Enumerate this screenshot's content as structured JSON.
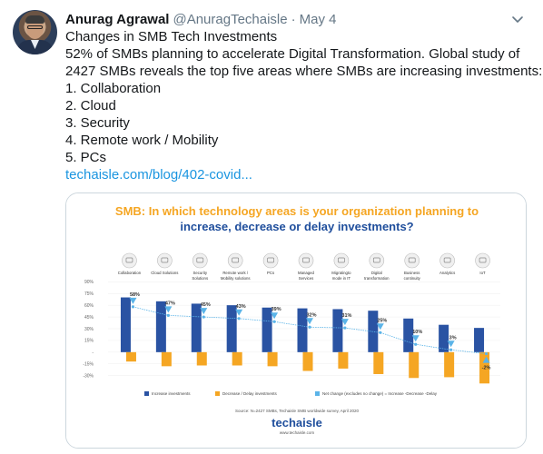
{
  "tweet": {
    "author_name": "Anurag Agrawal",
    "handle": "@AnuragTechaisle",
    "separator": "·",
    "date": "May 4",
    "lines": [
      "Changes in SMB Tech Investments",
      "52% of SMBs planning to accelerate Digital Transformation. Global study of",
      "2427 SMBs reveals the top five areas where SMBs are increasing investments:",
      "1. Collaboration",
      "2. Cloud",
      "3. Security",
      "4. Remote work / Mobility",
      "5. PCs"
    ],
    "link_text": "techaisle.com/blog/402-covid..."
  },
  "icons": {
    "caret": "chevron-down-icon",
    "avatar": "avatar"
  },
  "colors": {
    "increase": "#2a53a3",
    "decrease": "#f5a623",
    "net": "#5bb4e8",
    "title_blue": "#1f4e9c",
    "title_orange": "#f5a623",
    "link": "#1b95e0"
  },
  "chart_data": {
    "type": "bar",
    "title_prefix": "SMB:",
    "title_rest": "In which technology areas is your organization planning to",
    "title_line2": "increase, decrease or delay investments?",
    "categories": [
      "Collaboration",
      "Cloud Solutions",
      "Security Solutions",
      "Remote work / Mobility solutions",
      "PCs",
      "Managed Services",
      "Migratingto mode in IT",
      "Digital transformation",
      "Business continuity",
      "Analytics",
      "IoT"
    ],
    "category_lines": [
      [
        "Collaboration"
      ],
      [
        "Cloud Solutions"
      ],
      [
        "Security",
        "Solutions"
      ],
      [
        "Remote work /",
        "Mobility solutions"
      ],
      [
        "PCs"
      ],
      [
        "Managed",
        "Services"
      ],
      [
        "Migratingto",
        "mode in IT"
      ],
      [
        "Digital",
        "transformation"
      ],
      [
        "Business",
        "continuity"
      ],
      [
        "Analytics"
      ],
      [
        "IoT"
      ]
    ],
    "series": [
      {
        "name": "Increase investments",
        "values": [
          70,
          65,
          62,
          60,
          57,
          56,
          55,
          53,
          43,
          35,
          31
        ]
      },
      {
        "name": "Decrease / Delay investments",
        "values": [
          -12,
          -18,
          -17,
          -17,
          -18,
          -24,
          -21,
          -28,
          -33,
          -32,
          -40
        ]
      },
      {
        "name": "Net change (excludes no change) = Increase -Decrease -Delay",
        "values": [
          58,
          47,
          45,
          43,
          39,
          32,
          31,
          25,
          10,
          3,
          -2
        ]
      }
    ],
    "net_labels": [
      "58%",
      "47%",
      "45%",
      "43%",
      "39%",
      "32%",
      "31%",
      "25%",
      "10%",
      "3%",
      "-2%"
    ],
    "y_ticks": [
      "90%",
      "75%",
      "60%",
      "45%",
      "30%",
      "15%",
      "-",
      "-15%",
      "-30%"
    ],
    "ylim": [
      -35,
      95
    ],
    "source": "Source: N=2427 SMBs, Techaisle SMB worldwide survey, April 2020",
    "brand": "techaisle",
    "brand_url": "www.techaisle.com"
  }
}
